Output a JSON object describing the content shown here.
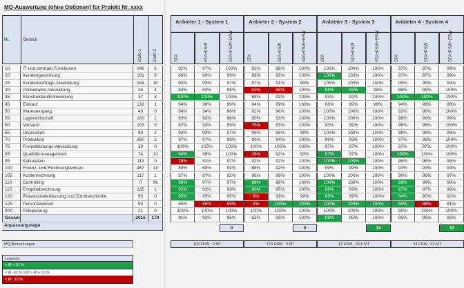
{
  "title": "MQ-Auswertung (ohne Optionen) für Projekt Nr. xxxx",
  "left_headers": {
    "nr": "Nr.",
    "bereich": "Bereich",
    "stufe1": "Stufe 1",
    "stufe2": "Stufe 2"
  },
  "vendors": [
    "Anbieter 1 - System 1",
    "Anbieter 2 - System 2",
    "Anbieter 3 - System 3",
    "Anbieter 4 - System 4"
  ],
  "subcolumns": [
    "STA",
    "STA+PSW",
    "STA+PSW+ERW"
  ],
  "colors": {
    "green": "#1ea04b",
    "red": "#c00000",
    "header": "#dce3f0"
  },
  "rows": [
    {
      "nr": "10",
      "bereich": "IT und zentrale Funktionen",
      "s1": "146",
      "s2": "6",
      "v": [
        "92%",
        "97%",
        "100%",
        "92%",
        "98%",
        "100%",
        "100%",
        "100%",
        "100%",
        "97%",
        "97%",
        "99%"
      ],
      "c": "............"
    },
    {
      "nr": "20",
      "bereich": "Kundengewinnung",
      "s1": "191",
      "s2": "9",
      "v": [
        "89%",
        "90%",
        "99%",
        "89%",
        "93%",
        "100%",
        "100%",
        "100%",
        "100%",
        "97%",
        "97%",
        "99%"
      ],
      "c": "......g....."
    },
    {
      "nr": "25",
      "bereich": "Kundenauftrags-Abwicklung",
      "s1": "164",
      "s2": "18",
      "v": [
        "93%",
        "93%",
        "97%",
        "87%",
        "91%",
        "99%",
        "100%",
        "100%",
        "100%",
        "99%",
        "99%",
        "99%"
      ],
      "c": "............"
    },
    {
      "nr": "30",
      "bereich": "Artikeldaten-Verwaltung",
      "s1": "36",
      "s2": "4",
      "v": [
        "83%",
        "83%",
        "98%",
        "63%",
        "68%",
        "100%",
        "98%",
        "98%",
        "98%",
        "88%",
        "88%",
        "100%"
      ],
      "c": "...rr.gg...."
    },
    {
      "nr": "35",
      "bereich": "Konstruktion/Entwicklung",
      "s1": "37",
      "s2": "3",
      "v": [
        "100%",
        "100%",
        "100%",
        "88%",
        "93%",
        "100%",
        "93%",
        "93%",
        "100%",
        "100%",
        "100%",
        "100%"
      ],
      "c": "gg.......gg."
    },
    {
      "nr": "45",
      "bereich": "Einkauf",
      "s1": "138",
      "s2": "1",
      "v": [
        "94%",
        "96%",
        "99%",
        "94%",
        "99%",
        "100%",
        "96%",
        "99%",
        "99%",
        "94%",
        "98%",
        "98%"
      ],
      "c": "............"
    },
    {
      "nr": "50",
      "bereich": "Wareneingang",
      "s1": "49",
      "s2": "0",
      "v": [
        "94%",
        "94%",
        "96%",
        "92%",
        "96%",
        "100%",
        "100%",
        "100%",
        "100%",
        "92%",
        "96%",
        "100%"
      ],
      "c": "............"
    },
    {
      "nr": "55",
      "bereich": "Lagerwirtschaft",
      "s1": "160",
      "s2": "1",
      "v": [
        "93%",
        "93%",
        "96%",
        "90%",
        "93%",
        "100%",
        "100%",
        "100%",
        "100%",
        "98%",
        "99%",
        "99%"
      ],
      "c": "............"
    },
    {
      "nr": "60",
      "bereich": "Versand",
      "s1": "103",
      "s2": "0",
      "v": [
        "87%",
        "93%",
        "99%",
        "75%",
        "83%",
        "100%",
        "93%",
        "99%",
        "100%",
        "96%",
        "96%",
        "100%"
      ],
      "c": "...r........"
    },
    {
      "nr": "65",
      "bereich": "Disposition",
      "s1": "90",
      "s2": "2",
      "v": [
        "93%",
        "93%",
        "97%",
        "96%",
        "96%",
        "98%",
        "100%",
        "100%",
        "100%",
        "98%",
        "98%",
        "98%"
      ],
      "c": "............"
    },
    {
      "nr": "70",
      "bereich": "Produktion",
      "s1": "390",
      "s2": "2",
      "v": [
        "97%",
        "97%",
        "99%",
        "90%",
        "94%",
        "100%",
        "99%",
        "99%",
        "100%",
        "97%",
        "99%",
        "100%"
      ],
      "c": "............"
    },
    {
      "nr": "75",
      "bereich": "Fremdleistungs-Abwicklung",
      "s1": "39",
      "s2": "0",
      "v": [
        "100%",
        "100%",
        "100%",
        "100%",
        "100%",
        "100%",
        "97%",
        "97%",
        "100%",
        "97%",
        "97%",
        "100%"
      ],
      "c": "............"
    },
    {
      "nr": "85",
      "bereich": "Qualitätsmanagement",
      "s1": "74",
      "s2": "13",
      "v": [
        "94%",
        "98%",
        "100%",
        "26%",
        "92%",
        "93%",
        "97%",
        "97%",
        "100%",
        "100%",
        "100%",
        "100%"
      ],
      "c": "g..r..g..g.."
    },
    {
      "nr": "95",
      "bereich": "Kalkulation",
      "s1": "113",
      "s2": "0",
      "v": [
        "78%",
        "81%",
        "97%",
        "92%",
        "92%",
        "100%",
        "100%",
        "100%",
        "100%",
        "96%",
        "96%",
        "96%"
      ],
      "c": "r.....gg...."
    },
    {
      "nr": "100",
      "bereich": "Finanz- und Rechnungswesen",
      "s1": "467",
      "s2": "13",
      "v": [
        "89%",
        "89%",
        "92%",
        "88%",
        "92%",
        "100%",
        "99%",
        "99%",
        "100%",
        "93%",
        "93%",
        "94%"
      ],
      "c": "............"
    },
    {
      "nr": "105",
      "bereich": "Kostenrechnung",
      "s1": "117",
      "s2": "1",
      "v": [
        "87%",
        "87%",
        "92%",
        "96%",
        "96%",
        "100%",
        "100%",
        "100%",
        "100%",
        "96%",
        "96%",
        "97%"
      ],
      "c": "............"
    },
    {
      "nr": "110",
      "bereich": "Controlling",
      "s1": "0",
      "s2": "96",
      "v": [
        "96%",
        "97%",
        "97%",
        "88%",
        "88%",
        "100%",
        "100%",
        "100%",
        "100%",
        "99%",
        "99%",
        "99%"
      ],
      "c": "g..g..g..g.."
    },
    {
      "nr": "115",
      "bereich": "Entgeltabrechnung",
      "s1": "135",
      "s2": "1",
      "v": [
        "92%",
        "93%",
        "93%",
        "90%",
        "95%",
        "100%",
        "98%",
        "99%",
        "100%",
        "97%",
        "97%",
        "99%"
      ],
      "c": "g..g..g..g.."
    },
    {
      "nr": "120",
      "bereich": "Präsenzzeiterfassung und Zutrittskontrolle",
      "s1": "93",
      "s2": "0",
      "v": [
        "95%",
        "95%",
        "95%",
        "8%",
        "99%",
        "99%",
        "89%",
        "99%",
        "100%",
        "84%",
        "90%",
        "92%"
      ],
      "c": "g..r..g..g.."
    },
    {
      "nr": "125",
      "bereich": "Personalwesen",
      "s1": "53",
      "s2": "0",
      "v": [
        "55%",
        "55%",
        "55%",
        "2%",
        "100%",
        "100%",
        "100%",
        "100%",
        "100%",
        "68%",
        "68%",
        "81%"
      ],
      "c": ".rrrggggggr."
    },
    {
      "nr": "900",
      "bereich": "Feinplanung",
      "s1": "21",
      "s2": "0",
      "v": [
        "100%",
        "100%",
        "100%",
        "100%",
        "100%",
        "100%",
        "100%",
        "100%",
        "100%",
        "95%",
        "100%",
        "100%"
      ],
      "c": "............"
    }
  ],
  "total": {
    "label": "Gesamt",
    "s1": "2616",
    "s2": "170",
    "v": [
      "91%",
      "92%",
      "96%",
      "83%",
      "93%",
      "100%",
      "98%",
      "99%",
      "100%",
      "95%",
      "96%",
      "98%"
    ],
    "c": "......g....."
  },
  "adjust": {
    "label": "Anpassungstage",
    "values": [
      "0",
      "0",
      "34",
      "32"
    ],
    "c": "..gg"
  },
  "remarks": {
    "label": "MQ-Bemerkungen",
    "values": [
      "103 ERW : 0 MT",
      "179 ERW : 0 MT",
      "19 ERW : 33,5 MT",
      "43 ERW : 32 MT"
    ]
  },
  "legend": {
    "title": "Legende",
    "items": [
      {
        "label": "> Ø + 10 %",
        "c": "g"
      },
      {
        "label": "> Ø -10 % und < Ø + 10 %",
        "c": "."
      },
      {
        "label": "< Ø - 10 %",
        "c": "r"
      }
    ]
  }
}
